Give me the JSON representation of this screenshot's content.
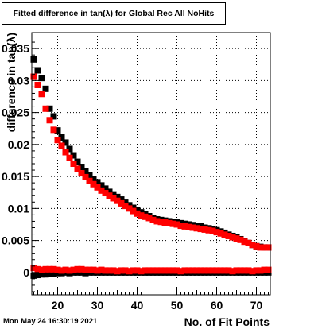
{
  "chart_data": {
    "type": "scatter",
    "title": "Fitted difference in tan(λ) for Global Rec All NoHits",
    "xlabel": "No. of Fit Points",
    "ylabel": "difference in tan(λ)",
    "xlim": [
      13.5,
      73.5
    ],
    "ylim": [
      -0.0035,
      0.0375
    ],
    "x_ticks": [
      "20",
      "30",
      "40",
      "50",
      "60",
      "70"
    ],
    "y_ticks": [
      "0",
      "0.005",
      "0.01",
      "0.015",
      "0.02",
      "0.025",
      "0.03",
      "0.035"
    ],
    "grid": true,
    "colors": {
      "series_1": "#000000",
      "series_2": "#ff0000",
      "frame": "#000000",
      "grid": "#000000"
    },
    "x": [
      14,
      15,
      16,
      17,
      18,
      19,
      20,
      21,
      22,
      23,
      24,
      25,
      26,
      27,
      28,
      29,
      30,
      31,
      32,
      33,
      34,
      35,
      36,
      37,
      38,
      39,
      40,
      41,
      42,
      43,
      44,
      45,
      46,
      47,
      48,
      49,
      50,
      51,
      52,
      53,
      54,
      55,
      56,
      57,
      58,
      59,
      60,
      61,
      62,
      63,
      64,
      65,
      66,
      67,
      68,
      69,
      70,
      71,
      72,
      73
    ],
    "series": [
      {
        "marker": "square",
        "color": "#000000",
        "values": [
          0.0333,
          0.0316,
          0.0304,
          0.0287,
          0.0256,
          0.0244,
          0.0222,
          0.0211,
          0.0203,
          0.0193,
          0.0183,
          0.0173,
          0.0165,
          0.0158,
          0.0152,
          0.0146,
          0.0141,
          0.0136,
          0.0131,
          0.0126,
          0.0122,
          0.0118,
          0.0114,
          0.0109,
          0.0105,
          0.0101,
          0.0097,
          0.0094,
          0.0091,
          0.0088,
          0.0085,
          0.0083,
          0.0082,
          0.0081,
          0.008,
          0.0079,
          0.0078,
          0.0077,
          0.0076,
          0.0075,
          0.0074,
          0.0073,
          0.0072,
          0.007,
          0.0069,
          0.0068,
          0.0066,
          0.0064,
          0.0062,
          0.0059,
          0.0057,
          0.0055,
          0.0052,
          0.0049,
          0.0046,
          0.0043,
          0.0041,
          0.004,
          0.0039,
          0.0039
        ],
        "values_low": [
          -0.0005,
          -0.0004,
          -0.0003,
          -0.0003,
          -0.0002,
          -0.0002,
          -0.0001,
          -0.0001,
          0.0,
          -0.0001,
          0.0,
          0.0,
          0.0,
          -0.0001,
          0.0,
          0.0,
          0.0,
          0.0,
          0.0,
          0.0,
          0.0,
          0.0,
          0.0,
          0.0,
          0.0,
          0.0,
          0.0,
          0.0,
          0.0,
          0.0,
          0.0,
          0.0,
          0.0,
          0.0,
          0.0,
          0.0,
          0.0,
          0.0,
          0.0,
          0.0,
          0.0,
          0.0,
          0.0,
          0.0,
          0.0,
          0.0,
          0.0,
          0.0,
          0.0,
          0.0,
          0.0,
          0.0,
          0.0,
          0.0,
          0.0,
          0.0,
          0.0,
          0.0,
          0.0,
          0.0
        ]
      },
      {
        "marker": "square",
        "color": "#ff0000",
        "values": [
          0.0306,
          0.0293,
          0.0279,
          0.0256,
          0.0238,
          0.0223,
          0.0207,
          0.0198,
          0.0188,
          0.0179,
          0.017,
          0.0162,
          0.0155,
          0.0149,
          0.0143,
          0.0138,
          0.0133,
          0.0128,
          0.0124,
          0.012,
          0.0116,
          0.0112,
          0.0108,
          0.0104,
          0.01,
          0.0096,
          0.0092,
          0.0089,
          0.0087,
          0.0085,
          0.0082,
          0.008,
          0.0079,
          0.0078,
          0.0077,
          0.0076,
          0.0075,
          0.0073,
          0.0072,
          0.0071,
          0.007,
          0.0069,
          0.0068,
          0.0067,
          0.0066,
          0.0065,
          0.0063,
          0.0061,
          0.0059,
          0.0057,
          0.0055,
          0.0053,
          0.0051,
          0.0048,
          0.0046,
          0.0043,
          0.0041,
          0.0039,
          0.0039,
          0.0039
        ],
        "values_low": [
          0.0007,
          0.0005,
          0.0004,
          0.0005,
          0.0005,
          0.0005,
          0.0004,
          0.0003,
          0.0004,
          0.0003,
          0.0004,
          0.0005,
          0.0005,
          0.0004,
          0.0004,
          0.0004,
          0.0003,
          0.0004,
          0.0003,
          0.0003,
          0.0003,
          0.0002,
          0.0003,
          0.0003,
          0.0002,
          0.0003,
          0.0003,
          0.0002,
          0.0003,
          0.0003,
          0.0003,
          0.0003,
          0.0003,
          0.0003,
          0.0003,
          0.0003,
          0.0003,
          0.0002,
          0.0003,
          0.0003,
          0.0003,
          0.0003,
          0.0003,
          0.0003,
          0.0003,
          0.0003,
          0.0003,
          0.0003,
          0.0003,
          0.0003,
          0.0002,
          0.0003,
          0.0003,
          0.0003,
          0.0003,
          0.0002,
          0.0003,
          0.0003,
          0.0004,
          0.0004
        ]
      }
    ]
  },
  "header": {
    "title": "Fitted difference in tan(λ) for Global Rec All NoHits"
  },
  "footer": {
    "timestamp": "Mon May 24 16:30:19 2021"
  }
}
